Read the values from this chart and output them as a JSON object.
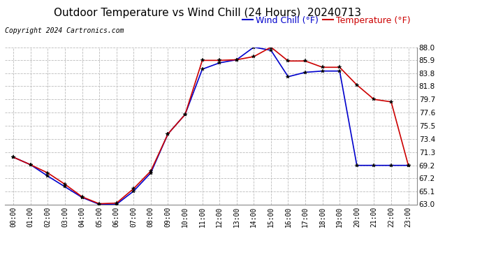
{
  "title": "Outdoor Temperature vs Wind Chill (24 Hours)  20240713",
  "copyright": "Copyright 2024 Cartronics.com",
  "legend_wind_chill": "Wind Chill (°F)",
  "legend_temperature": "Temperature (°F)",
  "x_labels": [
    "00:00",
    "01:00",
    "02:00",
    "03:00",
    "04:00",
    "05:00",
    "06:00",
    "07:00",
    "08:00",
    "09:00",
    "10:00",
    "11:00",
    "12:00",
    "13:00",
    "14:00",
    "15:00",
    "16:00",
    "17:00",
    "18:00",
    "19:00",
    "20:00",
    "21:00",
    "22:00",
    "23:00"
  ],
  "temperature": [
    70.5,
    69.3,
    68.0,
    66.2,
    64.2,
    63.1,
    63.2,
    65.5,
    68.3,
    74.2,
    77.3,
    85.9,
    85.9,
    86.0,
    86.5,
    88.0,
    85.8,
    85.8,
    84.8,
    84.8,
    82.0,
    79.7,
    79.3,
    69.2
  ],
  "wind_chill": [
    70.5,
    69.3,
    67.5,
    65.8,
    64.1,
    63.0,
    63.0,
    65.1,
    68.0,
    74.2,
    77.3,
    84.5,
    85.5,
    86.0,
    88.0,
    87.5,
    83.3,
    84.0,
    84.2,
    84.2,
    69.2,
    69.2,
    69.2,
    69.2
  ],
  "ylim": [
    63.0,
    88.0
  ],
  "yticks": [
    63.0,
    65.1,
    67.2,
    69.2,
    71.3,
    73.4,
    75.5,
    77.6,
    79.7,
    81.8,
    83.8,
    85.9,
    88.0
  ],
  "temperature_color": "#cc0000",
  "wind_chill_color": "#0000cc",
  "grid_color": "#bbbbbb",
  "background_color": "#ffffff",
  "title_fontsize": 11,
  "copyright_fontsize": 7,
  "legend_fontsize": 9,
  "marker_size": 4
}
